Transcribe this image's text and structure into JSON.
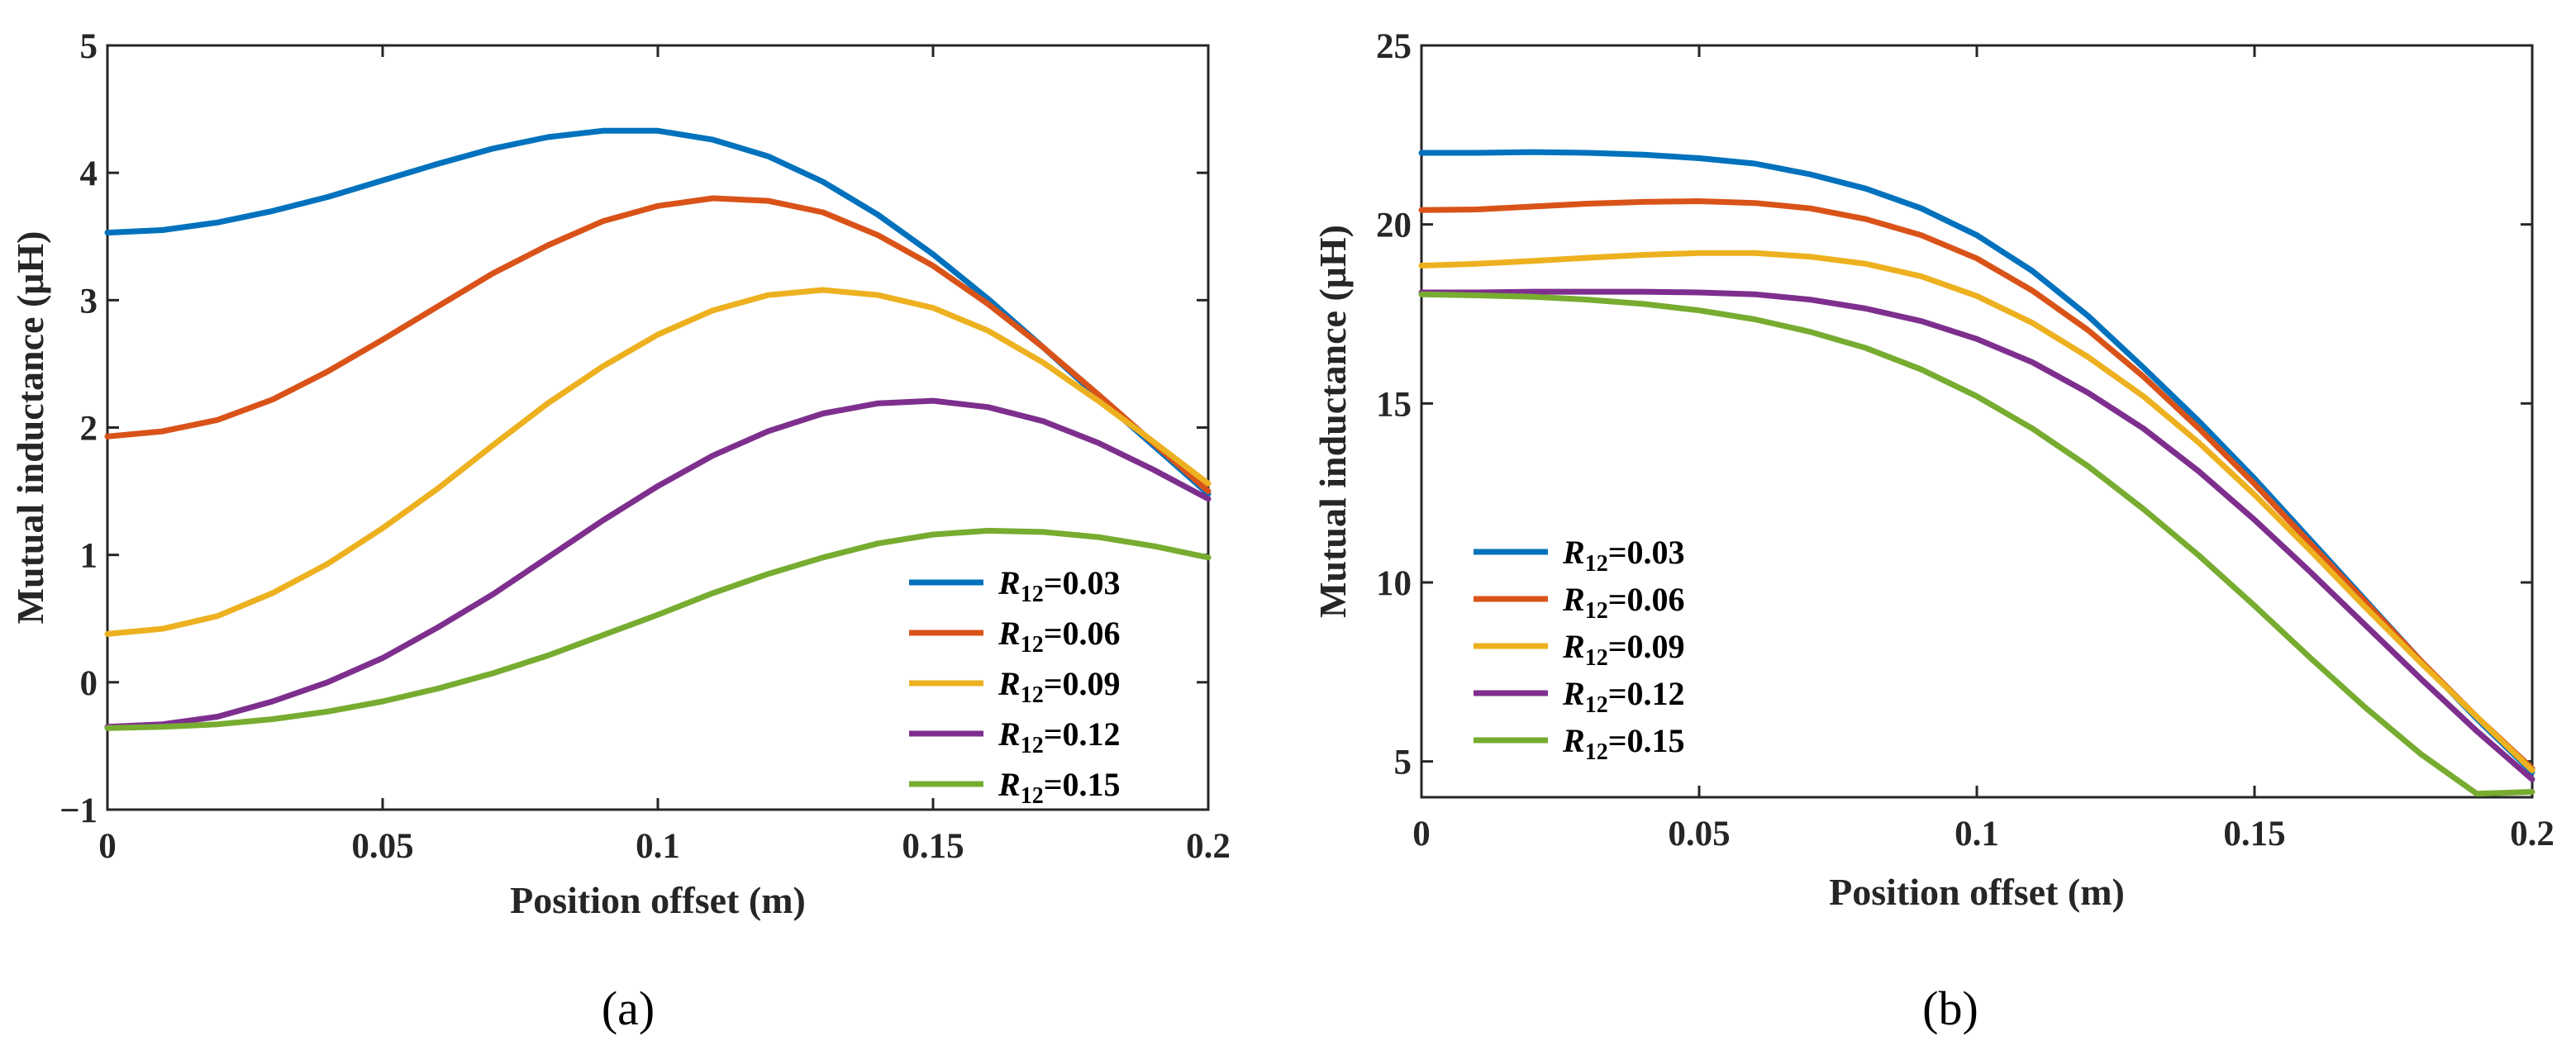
{
  "chart_data": [
    {
      "type": "line",
      "panel_label": "(a)",
      "xlabel": "Position offset (m)",
      "ylabel": "Mutual inductance (μH)",
      "xlim": [
        0,
        0.2
      ],
      "ylim": [
        -1,
        5
      ],
      "xticks": [
        0,
        0.05,
        0.1,
        0.15,
        0.2
      ],
      "xtick_labels": [
        "0",
        "0.05",
        "0.1",
        "0.15",
        "0.2"
      ],
      "yticks": [
        -1,
        0,
        1,
        2,
        3,
        4,
        5
      ],
      "ytick_labels": [
        "−1",
        "0",
        "1",
        "2",
        "3",
        "4",
        "5"
      ],
      "legend_position": "bottom-right",
      "x": [
        0,
        0.01,
        0.02,
        0.03,
        0.04,
        0.05,
        0.06,
        0.07,
        0.08,
        0.09,
        0.1,
        0.11,
        0.12,
        0.13,
        0.14,
        0.15,
        0.16,
        0.17,
        0.18,
        0.19,
        0.2
      ],
      "series": [
        {
          "name": "R12=0.03",
          "name_var": "R",
          "name_sub": "12",
          "name_val": "=0.03",
          "color": "#0072BD",
          "values": [
            3.53,
            3.55,
            3.61,
            3.7,
            3.81,
            3.94,
            4.07,
            4.19,
            4.28,
            4.33,
            4.33,
            4.26,
            4.13,
            3.93,
            3.67,
            3.36,
            3.01,
            2.63,
            2.24,
            1.86,
            1.48
          ]
        },
        {
          "name": "R12=0.06",
          "name_var": "R",
          "name_sub": "12",
          "name_val": "=0.06",
          "color": "#D95319",
          "values": [
            1.93,
            1.97,
            2.06,
            2.22,
            2.44,
            2.69,
            2.95,
            3.21,
            3.43,
            3.62,
            3.74,
            3.8,
            3.78,
            3.69,
            3.51,
            3.27,
            2.97,
            2.63,
            2.26,
            1.88,
            1.5
          ]
        },
        {
          "name": "R12=0.09",
          "name_var": "R",
          "name_sub": "12",
          "name_val": "=0.09",
          "color": "#EDB120",
          "values": [
            0.38,
            0.42,
            0.52,
            0.7,
            0.93,
            1.21,
            1.52,
            1.86,
            2.19,
            2.48,
            2.73,
            2.92,
            3.04,
            3.08,
            3.04,
            2.94,
            2.76,
            2.51,
            2.21,
            1.89,
            1.56
          ]
        },
        {
          "name": "R12=0.12",
          "name_var": "R",
          "name_sub": "12",
          "name_val": "=0.12",
          "color": "#7E2F8E",
          "values": [
            -0.35,
            -0.33,
            -0.27,
            -0.15,
            0.0,
            0.19,
            0.43,
            0.69,
            0.98,
            1.27,
            1.54,
            1.78,
            1.97,
            2.11,
            2.19,
            2.21,
            2.16,
            2.05,
            1.88,
            1.67,
            1.44
          ]
        },
        {
          "name": "R12=0.15",
          "name_var": "R",
          "name_sub": "12",
          "name_val": "=0.15",
          "color": "#77AC30",
          "values": [
            -0.36,
            -0.35,
            -0.33,
            -0.29,
            -0.23,
            -0.15,
            -0.05,
            0.07,
            0.21,
            0.37,
            0.53,
            0.7,
            0.85,
            0.98,
            1.09,
            1.16,
            1.19,
            1.18,
            1.14,
            1.07,
            0.98
          ]
        }
      ]
    },
    {
      "type": "line",
      "panel_label": "(b)",
      "xlabel": "Position offset (m)",
      "ylabel": "Mutual inductance (μH)",
      "xlim": [
        0,
        0.2
      ],
      "ylim": [
        4,
        25
      ],
      "xticks": [
        0,
        0.05,
        0.1,
        0.15,
        0.2
      ],
      "xtick_labels": [
        "0",
        "0.05",
        "0.1",
        "0.15",
        "0.2"
      ],
      "yticks": [
        5,
        10,
        15,
        20,
        25
      ],
      "ytick_labels": [
        "5",
        "10",
        "15",
        "20",
        "25"
      ],
      "legend_position": "center-left",
      "x": [
        0,
        0.01,
        0.02,
        0.03,
        0.04,
        0.05,
        0.06,
        0.07,
        0.08,
        0.09,
        0.1,
        0.11,
        0.12,
        0.13,
        0.14,
        0.15,
        0.16,
        0.17,
        0.18,
        0.19,
        0.2
      ],
      "series": [
        {
          "name": "R12=0.03",
          "name_var": "R",
          "name_sub": "12",
          "name_val": "=0.03",
          "color": "#0072BD",
          "values": [
            22.0,
            22.0,
            22.02,
            22.0,
            21.95,
            21.85,
            21.7,
            21.4,
            21.0,
            20.45,
            19.7,
            18.7,
            17.45,
            16.0,
            14.5,
            12.9,
            11.2,
            9.5,
            7.8,
            6.2,
            4.7
          ]
        },
        {
          "name": "R12=0.06",
          "name_var": "R",
          "name_sub": "12",
          "name_val": "=0.06",
          "color": "#D95319",
          "values": [
            20.4,
            20.42,
            20.5,
            20.58,
            20.63,
            20.65,
            20.6,
            20.45,
            20.15,
            19.7,
            19.05,
            18.15,
            17.05,
            15.75,
            14.3,
            12.75,
            11.1,
            9.45,
            7.8,
            6.25,
            4.8
          ]
        },
        {
          "name": "R12=0.09",
          "name_var": "R",
          "name_sub": "12",
          "name_val": "=0.09",
          "color": "#EDB120",
          "values": [
            18.85,
            18.9,
            18.98,
            19.07,
            19.15,
            19.2,
            19.2,
            19.1,
            18.9,
            18.55,
            18.0,
            17.25,
            16.3,
            15.2,
            13.9,
            12.45,
            10.9,
            9.3,
            7.75,
            6.25,
            4.75
          ]
        },
        {
          "name": "R12=0.12",
          "name_var": "R",
          "name_sub": "12",
          "name_val": "=0.12",
          "color": "#7E2F8E",
          "values": [
            18.1,
            18.1,
            18.12,
            18.12,
            18.12,
            18.1,
            18.05,
            17.9,
            17.65,
            17.3,
            16.8,
            16.15,
            15.3,
            14.3,
            13.1,
            11.75,
            10.3,
            8.8,
            7.3,
            5.85,
            4.5
          ]
        },
        {
          "name": "R12=0.15",
          "name_var": "R",
          "name_sub": "12",
          "name_val": "=0.15",
          "color": "#77AC30",
          "values": [
            18.05,
            18.02,
            17.98,
            17.9,
            17.78,
            17.6,
            17.35,
            17.0,
            16.55,
            15.95,
            15.2,
            14.3,
            13.25,
            12.05,
            10.75,
            9.35,
            7.9,
            6.5,
            5.2,
            4.1,
            4.15
          ]
        }
      ]
    }
  ]
}
